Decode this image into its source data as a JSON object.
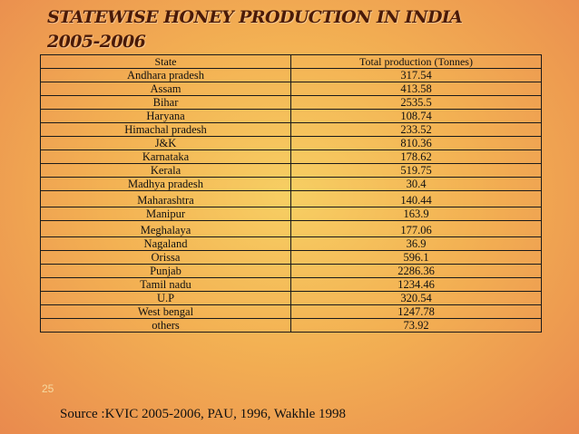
{
  "title": {
    "line1": "STATEWISE HONEY PRODUCTION IN INDIA",
    "line2": "2005-2006"
  },
  "table": {
    "headers": [
      "State",
      "Total production (Tonnes)"
    ],
    "rows": [
      [
        "Andhara pradesh",
        "317.54"
      ],
      [
        "Assam",
        "413.58"
      ],
      [
        "Bihar",
        "2535.5"
      ],
      [
        "Haryana",
        "108.74"
      ],
      [
        "Himachal pradesh",
        "233.52"
      ],
      [
        "J&K",
        "810.36"
      ],
      [
        "Karnataka",
        "178.62"
      ],
      [
        "Kerala",
        "519.75"
      ],
      [
        "Madhya pradesh",
        "30.4"
      ],
      [
        "Maharashtra",
        "140.44"
      ],
      [
        "Manipur",
        "163.9"
      ],
      [
        "Meghalaya",
        "177.06"
      ],
      [
        "Nagaland",
        "36.9"
      ],
      [
        "Orissa",
        "596.1"
      ],
      [
        "Punjab",
        "2286.36"
      ],
      [
        "Tamil nadu",
        "1234.46"
      ],
      [
        "U.P",
        "320.54"
      ],
      [
        "West bengal",
        "1247.78"
      ],
      [
        "others",
        "73.92"
      ]
    ]
  },
  "slide_number": "25",
  "source": "Source :KVIC 2005-2006, PAU, 1996, Wakhle 1998",
  "colors": {
    "background_center": "#f7cf63",
    "background_edge": "#e98a4e",
    "title": "#4a1a08"
  }
}
